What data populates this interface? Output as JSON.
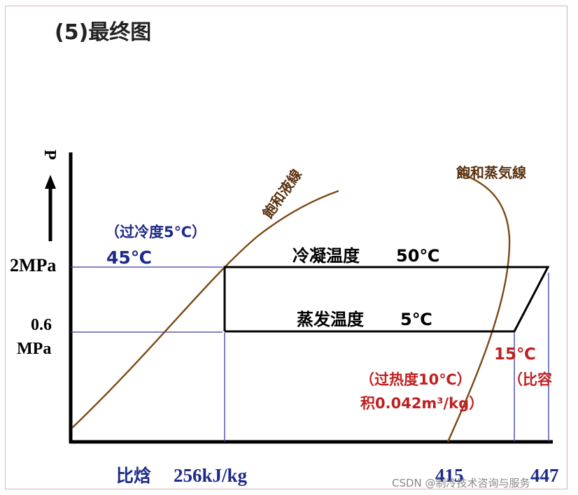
{
  "title": "(5)最终图",
  "axis": {
    "p_label": "P",
    "p_2mpa": "2MPa",
    "p_06": "0.6",
    "p_mpa": "MPa",
    "h_label": "比焓",
    "h_256": "256kJ/kg",
    "h_415": "415",
    "h_447": "447"
  },
  "curves": {
    "sat_liquid": "飽和液線",
    "sat_vapor": "飽和蒸気線"
  },
  "labels": {
    "subcool": "（过冷度5℃）",
    "temp_45": "45℃",
    "condense": "冷凝温度",
    "condense_val": "50℃",
    "evap": "蒸发温度",
    "evap_val": "5℃",
    "temp_15": "15℃",
    "bi_rong": "（比容",
    "superheat": "（过热度10℃）",
    "volume": "积0.042m³/kg）"
  },
  "watermark": "CSDN @制冷技术咨询与服务",
  "colors": {
    "axis": "#000000",
    "curve": "#7a4a16",
    "guide": "#3a3aa0",
    "blue_text": "#1e2a8a",
    "red_text": "#c02020",
    "title": "#222222"
  }
}
